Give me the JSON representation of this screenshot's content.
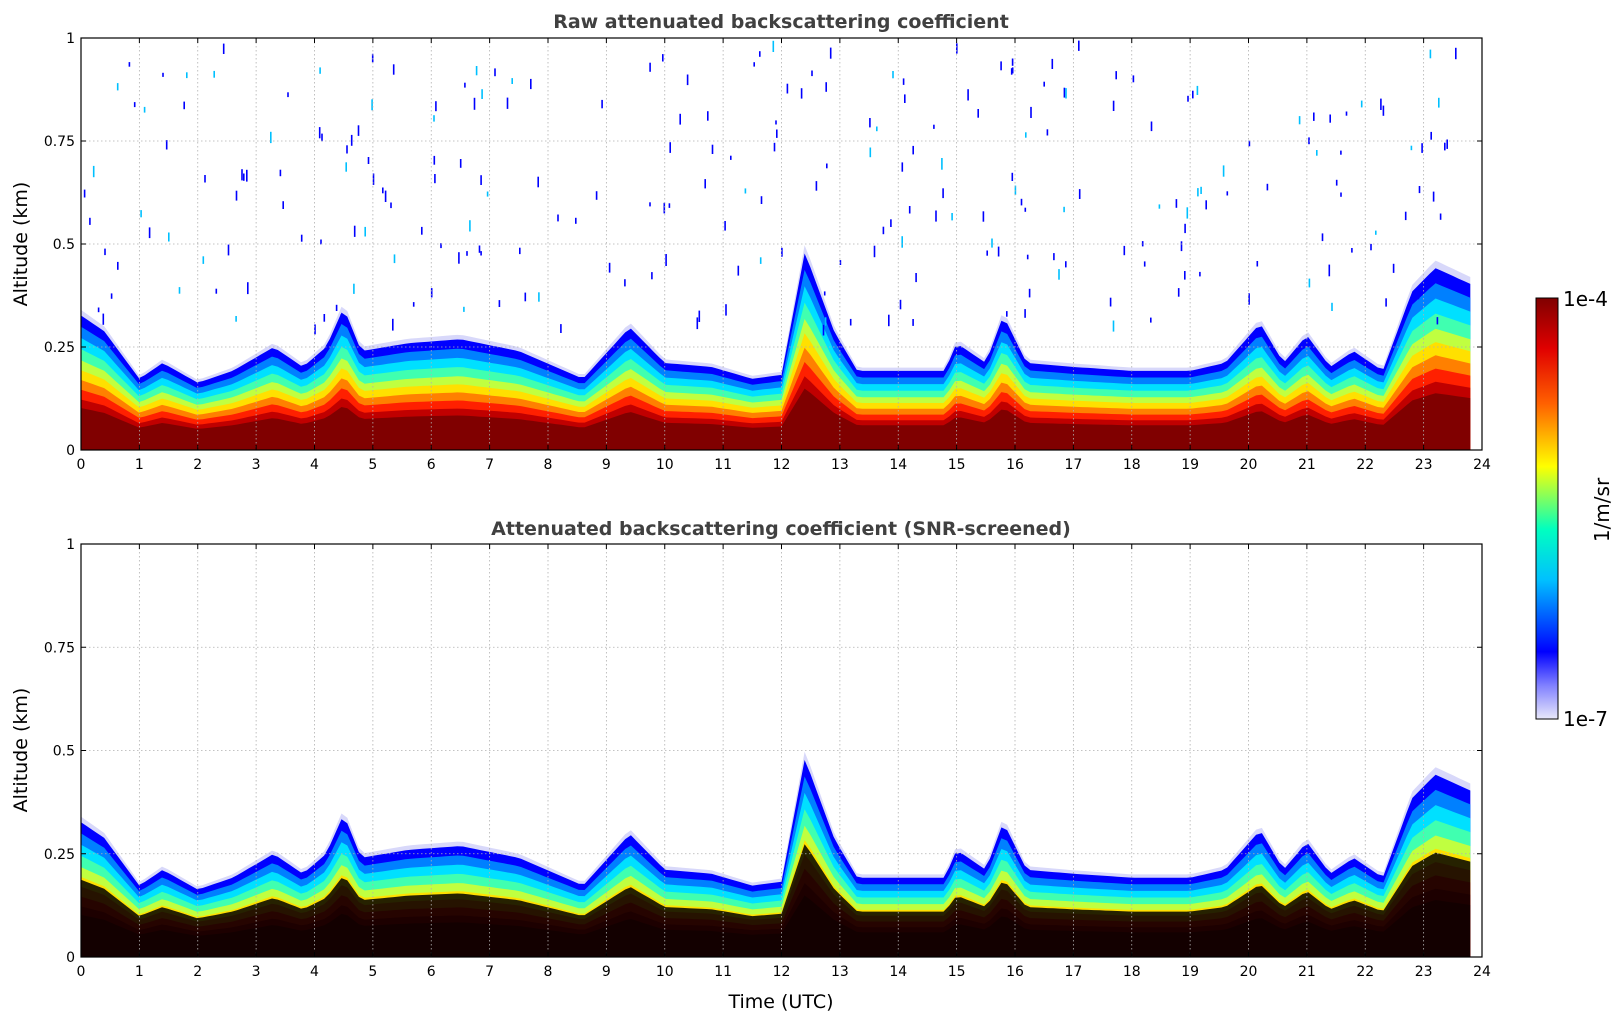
{
  "chart_data": [
    {
      "type": "heatmap",
      "title": "Raw attenuated backscattering coefficient",
      "xlabel": "",
      "ylabel": "Altitude (km)",
      "xlim": [
        0,
        24
      ],
      "ylim": [
        0,
        1
      ],
      "xticks": [
        0,
        1,
        2,
        3,
        4,
        5,
        6,
        7,
        8,
        9,
        10,
        11,
        12,
        13,
        14,
        15,
        16,
        17,
        18,
        19,
        20,
        21,
        22,
        23,
        24
      ],
      "yticks": [
        0,
        0.25,
        0.5,
        0.75,
        1
      ],
      "ytick_labels": [
        "0",
        "0.25",
        "0.5",
        "0.75",
        "1"
      ],
      "grid": true,
      "data_end_hour": 23.8,
      "profile_top_km": [
        [
          0,
          0.34
        ],
        [
          0.4,
          0.3
        ],
        [
          1,
          0.18
        ],
        [
          1.4,
          0.22
        ],
        [
          2,
          0.17
        ],
        [
          2.6,
          0.2
        ],
        [
          3.3,
          0.26
        ],
        [
          3.8,
          0.21
        ],
        [
          4.2,
          0.26
        ],
        [
          4.5,
          0.36
        ],
        [
          4.8,
          0.25
        ],
        [
          5.6,
          0.27
        ],
        [
          6.5,
          0.28
        ],
        [
          7.5,
          0.25
        ],
        [
          8.6,
          0.18
        ],
        [
          9.4,
          0.31
        ],
        [
          10,
          0.22
        ],
        [
          10.8,
          0.21
        ],
        [
          11.5,
          0.18
        ],
        [
          12,
          0.19
        ],
        [
          12.4,
          0.5
        ],
        [
          12.9,
          0.3
        ],
        [
          13.3,
          0.2
        ],
        [
          14.8,
          0.2
        ],
        [
          15.0,
          0.27
        ],
        [
          15.5,
          0.22
        ],
        [
          15.8,
          0.34
        ],
        [
          16.2,
          0.22
        ],
        [
          17,
          0.21
        ],
        [
          18,
          0.2
        ],
        [
          19,
          0.2
        ],
        [
          19.6,
          0.22
        ],
        [
          20.2,
          0.32
        ],
        [
          20.6,
          0.22
        ],
        [
          21,
          0.29
        ],
        [
          21.4,
          0.21
        ],
        [
          21.8,
          0.25
        ],
        [
          22.3,
          0.2
        ],
        [
          22.8,
          0.4
        ],
        [
          23.2,
          0.46
        ],
        [
          23.8,
          0.42
        ]
      ]
    },
    {
      "type": "heatmap",
      "title": "Attenuated backscattering coefficient (SNR-screened)",
      "xlabel": "Time (UTC)",
      "ylabel": "Altitude (km)",
      "xlim": [
        0,
        24
      ],
      "ylim": [
        0,
        1
      ],
      "xticks": [
        0,
        1,
        2,
        3,
        4,
        5,
        6,
        7,
        8,
        9,
        10,
        11,
        12,
        13,
        14,
        15,
        16,
        17,
        18,
        19,
        20,
        21,
        22,
        23,
        24
      ],
      "yticks": [
        0,
        0.25,
        0.5,
        0.75,
        1
      ],
      "ytick_labels": [
        "0",
        "0.25",
        "0.5",
        "0.75",
        "1"
      ],
      "grid": true,
      "data_end_hour": 23.8,
      "screened_black_core": true
    }
  ],
  "colorbar": {
    "label": "1/m/sr",
    "max_label": "1e-4",
    "min_label": "1e-7",
    "colormap": "jet",
    "colors": [
      "#e6e6fa",
      "#0000ff",
      "#00ffff",
      "#ffff00",
      "#ff0000",
      "#800000"
    ]
  }
}
